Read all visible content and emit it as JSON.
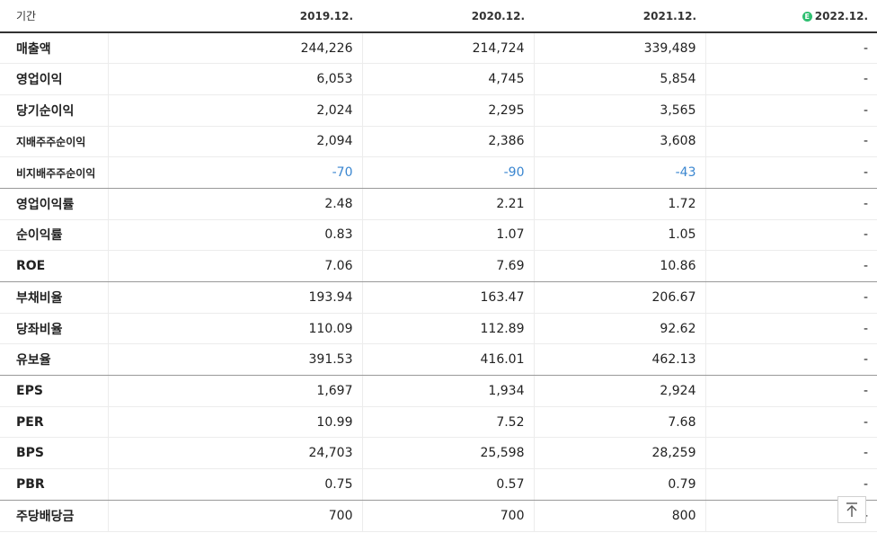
{
  "header": {
    "period_label": "기간",
    "columns": [
      {
        "label": "2019.12.",
        "estimate": false
      },
      {
        "label": "2020.12.",
        "estimate": false
      },
      {
        "label": "2021.12.",
        "estimate": false
      },
      {
        "label": "2022.12.",
        "estimate": true,
        "badge": "E"
      }
    ]
  },
  "rows": [
    {
      "label": "매출액",
      "values": [
        "244,226",
        "214,724",
        "339,489",
        "-"
      ]
    },
    {
      "label": "영업이익",
      "values": [
        "6,053",
        "4,745",
        "5,854",
        "-"
      ]
    },
    {
      "label": "당기순이익",
      "values": [
        "2,024",
        "2,295",
        "3,565",
        "-"
      ]
    },
    {
      "label": "지배주주순이익",
      "values": [
        "2,094",
        "2,386",
        "3,608",
        "-"
      ],
      "small": true
    },
    {
      "label": "비지배주주순이익",
      "values": [
        "-70",
        "-90",
        "-43",
        "-"
      ],
      "small": true,
      "group_end": true
    },
    {
      "label": "영업이익률",
      "values": [
        "2.48",
        "2.21",
        "1.72",
        "-"
      ]
    },
    {
      "label": "순이익률",
      "values": [
        "0.83",
        "1.07",
        "1.05",
        "-"
      ]
    },
    {
      "label": "ROE",
      "values": [
        "7.06",
        "7.69",
        "10.86",
        "-"
      ],
      "group_end": true
    },
    {
      "label": "부채비율",
      "values": [
        "193.94",
        "163.47",
        "206.67",
        "-"
      ]
    },
    {
      "label": "당좌비율",
      "values": [
        "110.09",
        "112.89",
        "92.62",
        "-"
      ]
    },
    {
      "label": "유보율",
      "values": [
        "391.53",
        "416.01",
        "462.13",
        "-"
      ],
      "group_end": true
    },
    {
      "label": "EPS",
      "values": [
        "1,697",
        "1,934",
        "2,924",
        "-"
      ]
    },
    {
      "label": "PER",
      "values": [
        "10.99",
        "7.52",
        "7.68",
        "-"
      ]
    },
    {
      "label": "BPS",
      "values": [
        "24,703",
        "25,598",
        "28,259",
        "-"
      ]
    },
    {
      "label": "PBR",
      "values": [
        "0.75",
        "0.57",
        "0.79",
        "-"
      ],
      "group_end": true
    },
    {
      "label": "주당배당금",
      "values": [
        "700",
        "700",
        "800",
        "-"
      ]
    }
  ],
  "colors": {
    "negative": "#3a86d0",
    "estimate_badge": "#2fbf71"
  },
  "scroll_top_button": {
    "icon": "arrow-up-to-top-icon"
  }
}
